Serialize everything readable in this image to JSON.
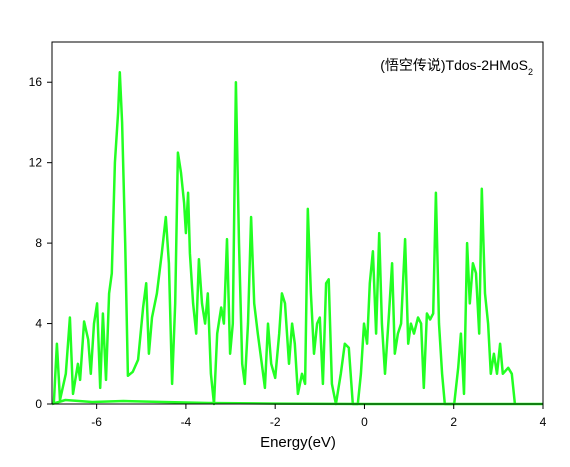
{
  "chart_data": {
    "type": "line",
    "annotation": {
      "text": "(悟空传说)Tdos-2HMoS",
      "subscript": "2"
    },
    "x_label": "Energy(eV)",
    "xlim": [
      -7,
      4
    ],
    "xticks": [
      -6,
      -4,
      -2,
      0,
      2,
      4
    ],
    "ylim": [
      0,
      18
    ],
    "yticks": [
      0,
      4,
      8,
      12,
      16
    ],
    "grid": false,
    "series": [
      {
        "color": "#22ff22",
        "x": [
          -6.96,
          -6.89,
          -6.82,
          -6.69,
          -6.6,
          -6.53,
          -6.42,
          -6.37,
          -6.28,
          -6.19,
          -6.13,
          -6.06,
          -5.99,
          -5.92,
          -5.86,
          -5.79,
          -5.72,
          -5.66,
          -5.59,
          -5.52,
          -5.48,
          -5.43,
          -5.36,
          -5.3,
          -5.19,
          -5.07,
          -4.96,
          -4.89,
          -4.83,
          -4.76,
          -4.65,
          -4.54,
          -4.45,
          -4.38,
          -4.31,
          -4.24,
          -4.18,
          -4.11,
          -4.04,
          -4.0,
          -3.95,
          -3.91,
          -3.84,
          -3.77,
          -3.71,
          -3.64,
          -3.57,
          -3.51,
          -3.44,
          -3.37,
          -3.3,
          -3.21,
          -3.15,
          -3.08,
          -3.01,
          -2.95,
          -2.88,
          -2.81,
          -2.74,
          -2.68,
          -2.61,
          -2.54,
          -2.47,
          -2.39,
          -2.3,
          -2.23,
          -2.16,
          -2.09,
          -2.0,
          -1.91,
          -1.85,
          -1.78,
          -1.69,
          -1.62,
          -1.56,
          -1.49,
          -1.4,
          -1.33,
          -1.27,
          -1.2,
          -1.13,
          -1.06,
          -1.0,
          -0.93,
          -0.86,
          -0.8,
          -0.73,
          -0.64,
          -0.53,
          -0.44,
          -0.35,
          -0.26,
          -0.15,
          -0.08,
          -0.01,
          0.06,
          0.12,
          0.19,
          0.26,
          0.33,
          0.39,
          0.46,
          0.55,
          0.62,
          0.68,
          0.75,
          0.82,
          0.91,
          0.98,
          1.04,
          1.11,
          1.2,
          1.27,
          1.33,
          1.4,
          1.47,
          1.54,
          1.6,
          1.67,
          1.74,
          1.8,
          1.92,
          2.01,
          2.1,
          2.16,
          2.23,
          2.3,
          2.36,
          2.43,
          2.5,
          2.57,
          2.63,
          2.7,
          2.77,
          2.83,
          2.9,
          2.97,
          3.04,
          3.1,
          3.22,
          3.3,
          3.37
        ],
        "values": [
          0,
          3.0,
          0.2,
          1.5,
          4.3,
          0.5,
          2.0,
          1.2,
          4.1,
          3.2,
          1.5,
          4.0,
          5.0,
          0.8,
          4.5,
          1.2,
          5.5,
          6.5,
          12,
          14.5,
          16.5,
          14,
          8,
          1.4,
          1.6,
          2.2,
          4.8,
          6.0,
          2.5,
          4.3,
          5.5,
          7.5,
          9.3,
          7.0,
          1.0,
          5.0,
          12.5,
          11.5,
          10.0,
          8.5,
          10.5,
          7.5,
          5.0,
          3.5,
          7.2,
          5.0,
          4.0,
          5.5,
          1.5,
          0,
          3.5,
          4.8,
          4.0,
          8.2,
          2.5,
          4.0,
          16.0,
          8.0,
          2.0,
          1.0,
          4.0,
          9.3,
          5.0,
          3.5,
          2.0,
          0.8,
          4.0,
          2.0,
          1.3,
          3.5,
          5.5,
          5.0,
          2.0,
          4.0,
          3.0,
          0.5,
          1.5,
          1.0,
          9.7,
          5.5,
          2.5,
          4.0,
          4.3,
          1.0,
          6.0,
          6.2,
          1.0,
          0,
          1.5,
          3.0,
          2.8,
          0,
          0,
          1.5,
          4.0,
          3.0,
          6.0,
          7.6,
          3.5,
          8.5,
          4.0,
          1.5,
          4.5,
          7.0,
          2.5,
          3.5,
          4.0,
          8.2,
          3.0,
          4.0,
          3.5,
          4.3,
          4.0,
          0.8,
          4.5,
          4.2,
          4.5,
          10.5,
          4.0,
          1.5,
          0,
          0,
          0,
          1.8,
          3.5,
          0.5,
          8.0,
          5.0,
          7.0,
          6.5,
          3.5,
          10.7,
          5.5,
          4.0,
          1.5,
          2.5,
          1.5,
          3.0,
          1.5,
          1.8,
          1.5,
          0
        ]
      },
      {
        "color": "#22ff22",
        "x": [
          -7,
          -6.7,
          -6.1,
          -5.4,
          -4.5,
          -3.5,
          -2,
          0,
          4
        ],
        "values": [
          0,
          0.2,
          0.1,
          0.15,
          0.1,
          0.05,
          0.02,
          0,
          0
        ]
      }
    ]
  }
}
